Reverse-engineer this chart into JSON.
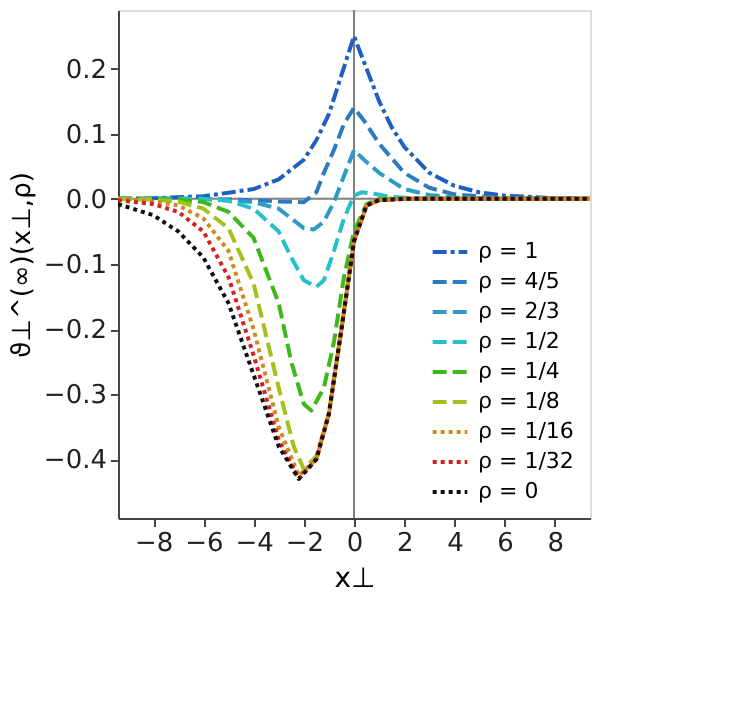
{
  "chart_data": {
    "type": "line",
    "xlabel": "x⊥",
    "ylabel": "ϑ⊥^(∞)(x⊥,ρ)",
    "xlim": [
      -9.4,
      9.4
    ],
    "ylim": [
      -0.49,
      0.29
    ],
    "xticks": [
      -8,
      -6,
      -4,
      -2,
      0,
      2,
      4,
      6,
      8
    ],
    "yticks": [
      {
        "value": -0.4,
        "label": "−0.4"
      },
      {
        "value": -0.3,
        "label": "−0.3"
      },
      {
        "value": -0.2,
        "label": "−0.2"
      },
      {
        "value": -0.1,
        "label": "−0.1"
      },
      {
        "value": 0,
        "label": "0.0"
      },
      {
        "value": 0.1,
        "label": "0.1"
      },
      {
        "value": 0.2,
        "label": "0.2"
      }
    ],
    "grid": false,
    "legend": "bottom right",
    "marker": "none",
    "ref_lines": [
      {
        "axis": "x",
        "value": 0,
        "color": "#808080",
        "line_style": "solid"
      },
      {
        "axis": "y",
        "value": 0,
        "color": "#808080",
        "line_style": "solid"
      }
    ],
    "series": [
      {
        "name": "ρ = 1",
        "color": "#1f5fbf",
        "line_style": "dashdot",
        "x": [
          -9.4,
          -8,
          -6,
          -4,
          -3,
          -2,
          -1.5,
          -1,
          -0.5,
          0,
          0.5,
          1,
          1.5,
          2,
          3,
          4,
          5,
          6,
          8,
          9.4
        ],
        "values": [
          0,
          0.001,
          0.004,
          0.015,
          0.03,
          0.06,
          0.09,
          0.13,
          0.19,
          0.25,
          0.2,
          0.15,
          0.11,
          0.08,
          0.04,
          0.02,
          0.01,
          0.005,
          0.001,
          0
        ]
      },
      {
        "name": "ρ = 4/5",
        "color": "#2b7bc0",
        "line_style": "dashed",
        "x": [
          -9.4,
          -6,
          -4,
          -3,
          -2,
          -1.5,
          -1.2,
          -0.8,
          -0.4,
          0,
          0.4,
          1,
          2,
          3,
          4,
          6,
          9.4
        ],
        "values": [
          0,
          0,
          -0.002,
          -0.004,
          -0.005,
          0.01,
          0.04,
          0.075,
          0.115,
          0.14,
          0.12,
          0.085,
          0.04,
          0.017,
          0.007,
          0.001,
          0
        ]
      },
      {
        "name": "ρ = 2/3",
        "color": "#2f9ac6",
        "line_style": "dashed",
        "x": [
          -9.4,
          -6,
          -4,
          -3,
          -2.5,
          -2,
          -1.6,
          -1.2,
          -0.8,
          -0.4,
          0,
          0.4,
          1,
          2,
          3,
          4,
          6,
          9.4
        ],
        "values": [
          0,
          0,
          -0.005,
          -0.015,
          -0.03,
          -0.045,
          -0.047,
          -0.035,
          -0.005,
          0.035,
          0.075,
          0.06,
          0.04,
          0.015,
          0.006,
          0.002,
          0,
          0
        ]
      },
      {
        "name": "ρ = 1/2",
        "color": "#25c0c8",
        "line_style": "dashed",
        "x": [
          -9.4,
          -6,
          -5,
          -4,
          -3,
          -2.5,
          -2,
          -1.5,
          -1.2,
          -0.8,
          -0.4,
          0,
          0.3,
          0.8,
          1.5,
          3,
          9.4
        ],
        "values": [
          0,
          0,
          -0.003,
          -0.015,
          -0.05,
          -0.09,
          -0.125,
          -0.135,
          -0.125,
          -0.08,
          -0.03,
          0.005,
          0.01,
          0.008,
          0.003,
          0,
          0
        ]
      },
      {
        "name": "ρ = 1/4",
        "color": "#3cb81a",
        "line_style": "dashed",
        "x": [
          -9.4,
          -7,
          -6,
          -5,
          -4,
          -3,
          -2.5,
          -2,
          -1.7,
          -1.2,
          -0.8,
          -0.4,
          0,
          0.5,
          1,
          9.4
        ],
        "values": [
          0,
          -0.001,
          -0.005,
          -0.02,
          -0.06,
          -0.16,
          -0.25,
          -0.315,
          -0.325,
          -0.29,
          -0.22,
          -0.12,
          -0.05,
          -0.008,
          0,
          0
        ]
      },
      {
        "name": "ρ = 1/8",
        "color": "#a0c21a",
        "line_style": "dashed",
        "x": [
          -9.4,
          -8,
          -7,
          -6,
          -5,
          -4,
          -3,
          -2.4,
          -2,
          -1.5,
          -1,
          -0.5,
          0,
          0.5,
          1,
          2,
          9.4
        ],
        "values": [
          0,
          -0.001,
          -0.004,
          -0.015,
          -0.045,
          -0.13,
          -0.29,
          -0.38,
          -0.415,
          -0.395,
          -0.33,
          -0.2,
          -0.065,
          -0.01,
          -0.002,
          0,
          0
        ]
      },
      {
        "name": "ρ = 1/16",
        "color": "#d08a1a",
        "line_style": "dotted",
        "x": [
          -9.4,
          -8,
          -7,
          -6,
          -5,
          -4,
          -3,
          -2.2,
          -1.5,
          -1,
          -0.5,
          0,
          0.5,
          1,
          2,
          9.4
        ],
        "values": [
          0,
          -0.004,
          -0.01,
          -0.03,
          -0.08,
          -0.2,
          -0.35,
          -0.425,
          -0.4,
          -0.33,
          -0.2,
          -0.065,
          -0.01,
          -0.002,
          0,
          0
        ]
      },
      {
        "name": "ρ = 1/32",
        "color": "#d42020",
        "line_style": "dotted",
        "x": [
          -9.4,
          -8,
          -7,
          -6,
          -5,
          -4,
          -3,
          -2.2,
          -1.5,
          -1,
          -0.5,
          0,
          0.5,
          1,
          2,
          9.4
        ],
        "values": [
          -0.002,
          -0.008,
          -0.02,
          -0.05,
          -0.12,
          -0.24,
          -0.37,
          -0.43,
          -0.4,
          -0.33,
          -0.2,
          -0.065,
          -0.01,
          -0.002,
          0,
          0
        ]
      },
      {
        "name": "ρ = 0",
        "color": "#111111",
        "line_style": "dotted",
        "x": [
          -9.4,
          -8,
          -7,
          -6,
          -5,
          -4,
          -3,
          -2.2,
          -1.5,
          -1,
          -0.5,
          0,
          0.5,
          1,
          2,
          9.4
        ],
        "values": [
          -0.008,
          -0.025,
          -0.05,
          -0.09,
          -0.16,
          -0.27,
          -0.38,
          -0.43,
          -0.4,
          -0.33,
          -0.2,
          -0.065,
          -0.01,
          -0.002,
          0,
          0
        ]
      }
    ]
  }
}
